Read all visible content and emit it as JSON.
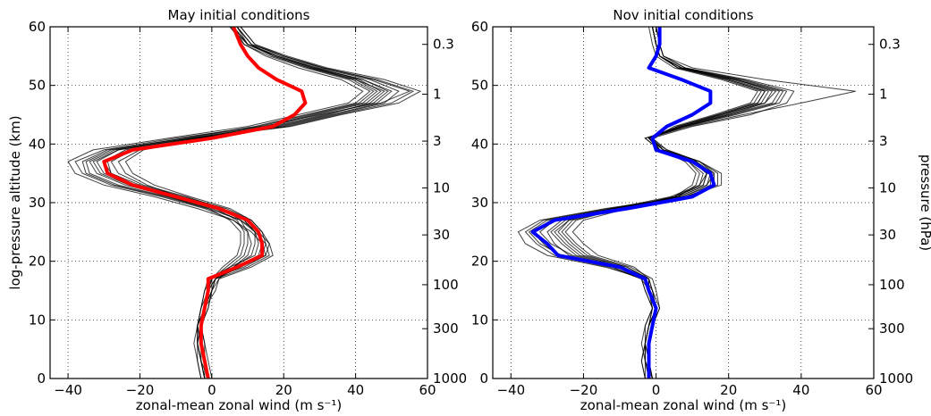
{
  "chart_data": [
    {
      "type": "line",
      "title": "May initial conditions",
      "xlabel": "zonal-mean zonal wind (m s⁻¹)",
      "ylabel": "log-pressure altitude (km)",
      "right_ylabel": "",
      "xlim": [
        -45,
        60
      ],
      "ylim": [
        0,
        60
      ],
      "xticks": [
        -40,
        -20,
        0,
        20,
        40,
        60
      ],
      "yticks": [
        0,
        10,
        20,
        30,
        40,
        50,
        60
      ],
      "pressure_ticks": [
        {
          "label": "0.3",
          "altitude_km": 57
        },
        {
          "label": "1",
          "altitude_km": 48.5
        },
        {
          "label": "3",
          "altitude_km": 40.5
        },
        {
          "label": "10",
          "altitude_km": 32.5
        },
        {
          "label": "30",
          "altitude_km": 24.5
        },
        {
          "label": "100",
          "altitude_km": 16
        },
        {
          "label": "300",
          "altitude_km": 8.5
        },
        {
          "label": "1000",
          "altitude_km": 0
        }
      ],
      "grid": true,
      "altitude_km": [
        0,
        3,
        6,
        9,
        12,
        15,
        17,
        19,
        21,
        23,
        25,
        27,
        29,
        31,
        33,
        35,
        37,
        39,
        41,
        43,
        45,
        47,
        49,
        51,
        53,
        55,
        57,
        60
      ],
      "mean_series": {
        "color": "#ff0000",
        "values": [
          -1,
          -2,
          -3,
          -3,
          -2,
          -1,
          -1,
          7,
          14,
          14,
          13,
          10,
          2,
          -10,
          -22,
          -29,
          -30,
          -22,
          0,
          17,
          23,
          26,
          25,
          18,
          13,
          10,
          8,
          6
        ]
      },
      "member_series": [
        [
          -2,
          -3,
          -4,
          -4,
          -3,
          -2,
          -1,
          5,
          12,
          13,
          12,
          9,
          2,
          -10,
          -22,
          -30,
          -32,
          -26,
          -5,
          15,
          28,
          42,
          46,
          40,
          28,
          18,
          10,
          7
        ],
        [
          -1,
          -2,
          -2,
          -3,
          -1,
          0,
          0,
          8,
          15,
          16,
          14,
          11,
          4,
          -8,
          -20,
          -28,
          -30,
          -24,
          -2,
          20,
          34,
          48,
          52,
          44,
          30,
          20,
          12,
          8
        ],
        [
          -3,
          -4,
          -5,
          -4,
          -2,
          -1,
          1,
          10,
          16,
          15,
          12,
          8,
          0,
          -12,
          -26,
          -34,
          -35,
          -28,
          -8,
          12,
          26,
          40,
          44,
          38,
          26,
          16,
          9,
          6
        ],
        [
          0,
          -1,
          -2,
          -3,
          -2,
          1,
          2,
          6,
          10,
          11,
          10,
          6,
          -2,
          -14,
          -28,
          -36,
          -38,
          -30,
          -10,
          14,
          30,
          46,
          50,
          42,
          28,
          18,
          10,
          5
        ],
        [
          -2,
          -2,
          -3,
          -4,
          -2,
          -1,
          0,
          4,
          8,
          9,
          9,
          7,
          1,
          -9,
          -18,
          -24,
          -26,
          -20,
          -4,
          18,
          32,
          44,
          48,
          40,
          27,
          17,
          11,
          7
        ],
        [
          -1,
          -3,
          -4,
          -3,
          -1,
          0,
          1,
          7,
          13,
          14,
          13,
          10,
          3,
          -11,
          -24,
          -32,
          -34,
          -27,
          -6,
          16,
          29,
          43,
          47,
          41,
          29,
          19,
          10,
          6
        ],
        [
          -2,
          -3,
          -3,
          -3,
          -2,
          -1,
          -1,
          9,
          15,
          14,
          11,
          6,
          -4,
          -16,
          -30,
          -38,
          -40,
          -33,
          -12,
          10,
          24,
          38,
          42,
          36,
          24,
          15,
          9,
          5
        ],
        [
          -1,
          -2,
          -3,
          -4,
          -3,
          -2,
          0,
          3,
          7,
          8,
          8,
          5,
          -1,
          -12,
          -22,
          -28,
          -29,
          -23,
          -4,
          22,
          36,
          52,
          58,
          48,
          32,
          21,
          12,
          8
        ],
        [
          -3,
          -4,
          -4,
          -4,
          -3,
          -1,
          1,
          8,
          14,
          15,
          14,
          11,
          5,
          -6,
          -16,
          -22,
          -24,
          -19,
          -3,
          19,
          33,
          47,
          55,
          45,
          31,
          20,
          11,
          7
        ],
        [
          -2,
          -3,
          -4,
          -4,
          -2,
          0,
          2,
          11,
          17,
          16,
          13,
          8,
          -1,
          -13,
          -27,
          -35,
          -36,
          -29,
          -7,
          13,
          27,
          41,
          45,
          39,
          27,
          17,
          10,
          6
        ],
        [
          -1,
          -2,
          -3,
          -3,
          -2,
          -1,
          0,
          6,
          11,
          12,
          12,
          9,
          2,
          -10,
          -23,
          -31,
          -33,
          -26,
          -5,
          17,
          31,
          45,
          49,
          42,
          29,
          18,
          10,
          6
        ],
        [
          -2,
          -3,
          -4,
          -3,
          -2,
          0,
          1,
          5,
          9,
          10,
          10,
          8,
          3,
          -7,
          -19,
          -26,
          -28,
          -22,
          -4,
          21,
          35,
          50,
          56,
          46,
          31,
          20,
          11,
          7
        ]
      ]
    },
    {
      "type": "line",
      "title": "Nov initial conditions",
      "xlabel": "zonal-mean zonal wind (m s⁻¹)",
      "ylabel": "",
      "right_ylabel": "pressure (hPa)",
      "xlim": [
        -45,
        60
      ],
      "ylim": [
        0,
        60
      ],
      "xticks": [
        -40,
        -20,
        0,
        20,
        40,
        60
      ],
      "yticks": [
        0,
        10,
        20,
        30,
        40,
        50,
        60
      ],
      "pressure_ticks": [
        {
          "label": "0.3",
          "altitude_km": 57
        },
        {
          "label": "1",
          "altitude_km": 48.5
        },
        {
          "label": "3",
          "altitude_km": 40.5
        },
        {
          "label": "10",
          "altitude_km": 32.5
        },
        {
          "label": "30",
          "altitude_km": 24.5
        },
        {
          "label": "100",
          "altitude_km": 16
        },
        {
          "label": "300",
          "altitude_km": 8.5
        },
        {
          "label": "1000",
          "altitude_km": 0
        }
      ],
      "grid": true,
      "altitude_km": [
        0,
        3,
        6,
        9,
        12,
        15,
        17,
        19,
        21,
        23,
        25,
        27,
        29,
        31,
        33,
        35,
        37,
        39,
        41,
        43,
        45,
        47,
        49,
        51,
        53,
        55,
        57,
        60
      ],
      "mean_series": {
        "color": "#0000ff",
        "values": [
          -2,
          -2,
          -2,
          -1,
          0,
          -2,
          -3,
          -10,
          -27,
          -30,
          -34,
          -28,
          -8,
          10,
          16,
          15,
          10,
          0,
          -1,
          3,
          10,
          15,
          15,
          7,
          -2,
          0,
          1,
          1
        ]
      },
      "member_series": [
        [
          -2,
          -3,
          -3,
          -2,
          -1,
          -3,
          -4,
          -12,
          -24,
          -28,
          -30,
          -26,
          -10,
          6,
          14,
          16,
          12,
          2,
          -2,
          6,
          18,
          28,
          30,
          20,
          6,
          1,
          0,
          -1
        ],
        [
          -1,
          -2,
          -2,
          -1,
          1,
          -1,
          -2,
          -8,
          -20,
          -24,
          -27,
          -24,
          -12,
          4,
          12,
          14,
          10,
          1,
          -3,
          8,
          22,
          34,
          36,
          24,
          8,
          2,
          1,
          0
        ],
        [
          -3,
          -4,
          -3,
          -2,
          0,
          -2,
          -3,
          -14,
          -30,
          -36,
          -38,
          -32,
          -14,
          8,
          18,
          18,
          12,
          3,
          -1,
          5,
          16,
          26,
          28,
          18,
          5,
          0,
          -1,
          -2
        ],
        [
          -2,
          -2,
          -3,
          -3,
          -1,
          -2,
          -2,
          -6,
          -16,
          -20,
          -23,
          -20,
          -8,
          6,
          11,
          12,
          9,
          1,
          -2,
          7,
          20,
          30,
          32,
          22,
          7,
          1,
          0,
          -1
        ],
        [
          -1,
          -3,
          -3,
          -2,
          0,
          -1,
          -3,
          -11,
          -26,
          -32,
          -35,
          -30,
          -12,
          7,
          15,
          15,
          11,
          2,
          -2,
          9,
          24,
          40,
          55,
          30,
          10,
          2,
          1,
          0
        ],
        [
          -2,
          -2,
          -2,
          -1,
          0,
          -2,
          -3,
          -9,
          -22,
          -26,
          -29,
          -25,
          -9,
          5,
          13,
          14,
          10,
          1,
          -1,
          6,
          17,
          27,
          29,
          19,
          6,
          1,
          0,
          -1
        ],
        [
          -3,
          -3,
          -4,
          -3,
          -1,
          -3,
          -4,
          -13,
          -28,
          -33,
          -36,
          -31,
          -13,
          8,
          17,
          17,
          12,
          3,
          -2,
          8,
          20,
          32,
          34,
          22,
          7,
          1,
          0,
          -1
        ],
        [
          -1,
          -2,
          -2,
          -1,
          1,
          0,
          -1,
          -7,
          -18,
          -22,
          -25,
          -22,
          -10,
          5,
          10,
          11,
          8,
          1,
          -3,
          7,
          19,
          29,
          31,
          21,
          6,
          1,
          0,
          -1
        ],
        [
          -2,
          -3,
          -3,
          -2,
          0,
          -2,
          -3,
          -10,
          -23,
          -29,
          -32,
          -28,
          -11,
          6,
          14,
          15,
          11,
          2,
          -1,
          10,
          26,
          36,
          38,
          25,
          8,
          2,
          1,
          0
        ],
        [
          -2,
          -2,
          -3,
          -2,
          -1,
          -2,
          -2,
          -8,
          -19,
          -23,
          -26,
          -23,
          -9,
          5,
          12,
          13,
          9,
          1,
          -2,
          7,
          18,
          30,
          33,
          22,
          7,
          1,
          0,
          -1
        ],
        [
          -3,
          -4,
          -3,
          -2,
          0,
          -2,
          -4,
          -12,
          -27,
          -31,
          -34,
          -29,
          -12,
          7,
          16,
          16,
          11,
          2,
          -2,
          8,
          21,
          33,
          35,
          23,
          7,
          1,
          0,
          -1
        ],
        [
          -1,
          -2,
          -2,
          -1,
          0,
          -1,
          -2,
          -9,
          -21,
          -25,
          -28,
          -24,
          -10,
          5,
          13,
          14,
          10,
          1,
          -2,
          6,
          17,
          28,
          30,
          20,
          6,
          1,
          0,
          -1
        ]
      ]
    }
  ]
}
